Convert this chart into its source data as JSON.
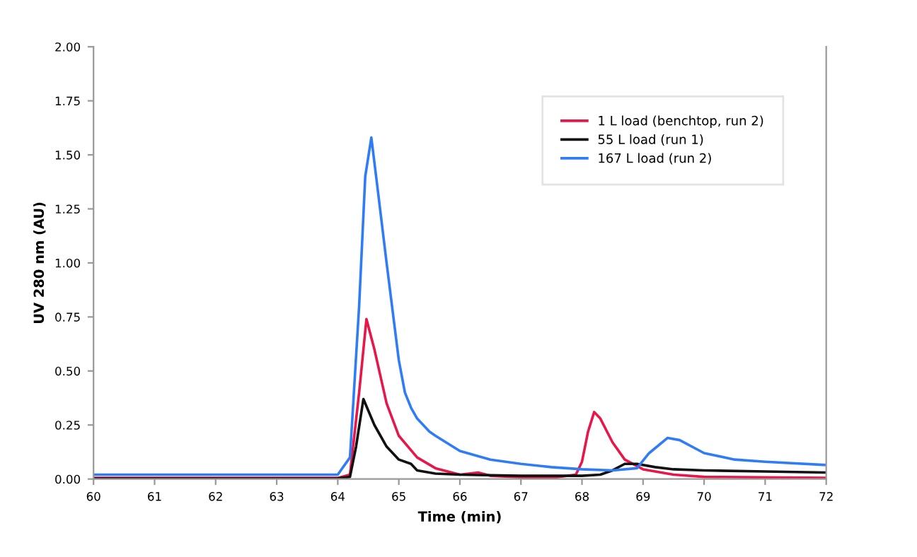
{
  "chart_data": {
    "type": "line",
    "xlabel": "Time (min)",
    "ylabel": "UV 280 nm (AU)",
    "xlim": [
      60,
      72
    ],
    "xticks": [
      60,
      61,
      62,
      63,
      64,
      65,
      66,
      67,
      68,
      69,
      70,
      71,
      72
    ],
    "ylim": [
      0,
      2
    ],
    "yticks": [
      {
        "value": 0,
        "label": "0.00"
      },
      {
        "value": 0.25,
        "label": "0.25"
      },
      {
        "value": 0.5,
        "label": "0.50"
      },
      {
        "value": 0.75,
        "label": "0.75"
      },
      {
        "value": 1,
        "label": "1.00"
      },
      {
        "value": 1.25,
        "label": "1.25"
      },
      {
        "value": 1.5,
        "label": "1.50"
      },
      {
        "value": 1.75,
        "label": "1.75"
      },
      {
        "value": 2,
        "label": "2.00"
      }
    ],
    "grid": false,
    "legend": "top right",
    "marker": "none",
    "line_style": "solid",
    "series": [
      {
        "name": "1 L load (benchtop, run 2)",
        "color": "#e8174a",
        "x": [
          60,
          63,
          64,
          64.2,
          64.35,
          64.47,
          64.6,
          64.8,
          65,
          65.3,
          65.6,
          66,
          66.3,
          66.5,
          67,
          67.5,
          67.9,
          68,
          68.1,
          68.2,
          68.3,
          68.5,
          68.7,
          69,
          69.5,
          70,
          72
        ],
        "values": [
          0.005,
          0.005,
          0.005,
          0.02,
          0.4,
          0.74,
          0.6,
          0.35,
          0.2,
          0.1,
          0.05,
          0.02,
          0.03,
          0.015,
          0.008,
          0.005,
          0.02,
          0.08,
          0.22,
          0.31,
          0.28,
          0.17,
          0.09,
          0.045,
          0.02,
          0.01,
          0.005
        ]
      },
      {
        "name": "55 L load (run 1)",
        "color": "#111111",
        "x": [
          60,
          63,
          64,
          64.2,
          64.3,
          64.42,
          64.6,
          64.8,
          65,
          65.2,
          65.3,
          65.6,
          66,
          67,
          68,
          68.3,
          68.5,
          68.7,
          68.9,
          69.2,
          69.5,
          70,
          71,
          72
        ],
        "values": [
          0.002,
          0.002,
          0.003,
          0.01,
          0.15,
          0.37,
          0.25,
          0.15,
          0.09,
          0.07,
          0.04,
          0.025,
          0.02,
          0.015,
          0.015,
          0.02,
          0.04,
          0.07,
          0.07,
          0.055,
          0.045,
          0.04,
          0.035,
          0.03
        ]
      },
      {
        "name": "167 L load (run 2)",
        "color": "#2f7cf6",
        "x": [
          60,
          63,
          64,
          64.2,
          64.35,
          64.45,
          64.55,
          64.65,
          64.8,
          65,
          65.1,
          65.2,
          65.3,
          65.5,
          65.6,
          66,
          66.5,
          67,
          67.5,
          68,
          68.5,
          68.9,
          69.1,
          69.4,
          69.6,
          70,
          70.5,
          71,
          72
        ],
        "values": [
          0.02,
          0.02,
          0.02,
          0.1,
          0.8,
          1.4,
          1.58,
          1.35,
          1.0,
          0.55,
          0.4,
          0.33,
          0.28,
          0.22,
          0.2,
          0.13,
          0.09,
          0.07,
          0.055,
          0.045,
          0.04,
          0.05,
          0.12,
          0.19,
          0.18,
          0.12,
          0.09,
          0.08,
          0.065
        ]
      }
    ]
  }
}
